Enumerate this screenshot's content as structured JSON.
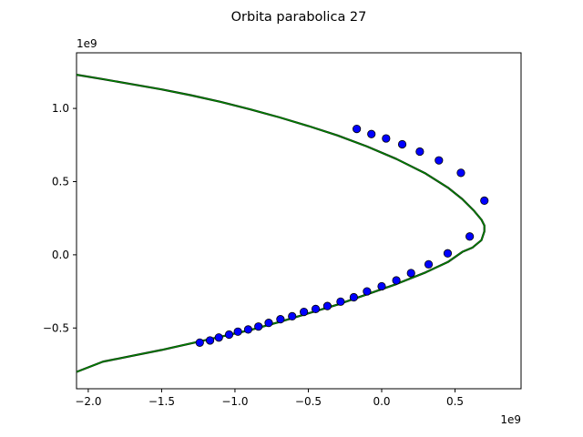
{
  "chart_data": {
    "type": "scatter",
    "title": "Orbita parabolica 27",
    "xlabel": "",
    "ylabel": "",
    "x_offset_text": "1e9",
    "y_offset_text": "1e9",
    "xlim": [
      -2.08,
      0.95
    ],
    "ylim": [
      -0.915,
      1.38
    ],
    "x_ticks": [
      -2.0,
      -1.5,
      -1.0,
      -0.5,
      0.0,
      0.5
    ],
    "x_tick_labels": [
      "−2.0",
      "−1.5",
      "−1.0",
      "−0.5",
      "0.0",
      "0.5"
    ],
    "y_ticks": [
      -0.5,
      0.0,
      0.5,
      1.0
    ],
    "y_tick_labels": [
      "−0.5",
      "0.0",
      "0.5",
      "1.0"
    ],
    "grid": false,
    "legend": "none",
    "colors": {
      "curve_black": "#000000",
      "curve_green": "#008000",
      "points": "#0000ff"
    },
    "series": [
      {
        "kind": "line",
        "color": "green",
        "x": [
          -2.08,
          -1.9,
          -1.7,
          -1.5,
          -1.3,
          -1.1,
          -0.9,
          -0.7,
          -0.5,
          -0.3,
          -0.1,
          0.1,
          0.3,
          0.45,
          0.55,
          0.63,
          0.68,
          0.7,
          0.7,
          0.68,
          0.62,
          0.55,
          0.45,
          0.3,
          0.1,
          -0.1,
          -0.3,
          -0.5,
          -0.7,
          -0.9,
          -1.1,
          -1.3,
          -1.5,
          -1.7,
          -1.9,
          -2.08
        ],
        "y": [
          1.23,
          1.2,
          1.165,
          1.13,
          1.09,
          1.045,
          0.995,
          0.94,
          0.88,
          0.815,
          0.74,
          0.655,
          0.555,
          0.46,
          0.38,
          0.3,
          0.24,
          0.2,
          0.16,
          0.1,
          0.05,
          0.02,
          -0.05,
          -0.12,
          -0.2,
          -0.27,
          -0.34,
          -0.4,
          -0.46,
          -0.515,
          -0.56,
          -0.605,
          -0.65,
          -0.69,
          -0.73,
          -0.8
        ]
      },
      {
        "kind": "points",
        "color": "blue",
        "x": [
          -0.17,
          -0.07,
          0.03,
          0.14,
          0.26,
          0.39,
          0.54,
          0.7,
          0.6,
          0.45,
          0.32,
          0.2,
          0.1,
          0.0,
          -0.1,
          -0.19,
          -0.28,
          -0.37,
          -0.45,
          -0.53,
          -0.61,
          -0.69,
          -0.77,
          -0.84,
          -0.91,
          -0.98,
          -1.04,
          -1.11,
          -1.17,
          -1.24
        ],
        "y": [
          0.86,
          0.825,
          0.795,
          0.755,
          0.705,
          0.645,
          0.56,
          0.37,
          0.125,
          0.01,
          -0.065,
          -0.125,
          -0.175,
          -0.215,
          -0.25,
          -0.29,
          -0.32,
          -0.35,
          -0.37,
          -0.39,
          -0.42,
          -0.44,
          -0.465,
          -0.49,
          -0.51,
          -0.525,
          -0.545,
          -0.565,
          -0.585,
          -0.6
        ]
      }
    ]
  }
}
